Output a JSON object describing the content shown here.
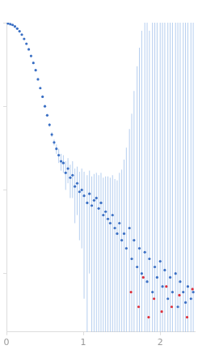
{
  "chart_data": {
    "type": "scatter",
    "log": "y",
    "grid": false,
    "tick_labels": "x",
    "xlim": [
      0,
      2.45
    ],
    "xticks": [
      0,
      1,
      2
    ],
    "ylim": [
      0.002,
      10
    ],
    "yticks": [
      0.01,
      0.1,
      1,
      10
    ],
    "series": [
      {
        "color": "#3a6fc4",
        "marker": "circle",
        "x": [
          0.02,
          0.05,
          0.08,
          0.11,
          0.14,
          0.17,
          0.2,
          0.23,
          0.26,
          0.29,
          0.32,
          0.35,
          0.38,
          0.41,
          0.44,
          0.47,
          0.5,
          0.53,
          0.56,
          0.59,
          0.62,
          0.65,
          0.68,
          0.71,
          0.74,
          0.77,
          0.8,
          0.83,
          0.86,
          0.89,
          0.92,
          0.95,
          0.98,
          1.01,
          1.05,
          1.08,
          1.11,
          1.14,
          1.17,
          1.2,
          1.23,
          1.26,
          1.29,
          1.32,
          1.35,
          1.38,
          1.41,
          1.44,
          1.47,
          1.5,
          1.53,
          1.56,
          1.6,
          1.63,
          1.66,
          1.7,
          1.73,
          1.76,
          1.8,
          1.83,
          1.86,
          1.9,
          1.93,
          1.96,
          2.0,
          2.03,
          2.06,
          2.1,
          2.13,
          2.16,
          2.2,
          2.23,
          2.26,
          2.3,
          2.33,
          2.36,
          2.4,
          2.43
        ],
        "values": [
          9.8,
          9.6,
          9.4,
          9.0,
          8.5,
          7.9,
          7.2,
          6.4,
          5.6,
          4.8,
          4.0,
          3.3,
          2.7,
          2.1,
          1.65,
          1.3,
          1.0,
          0.78,
          0.6,
          0.46,
          0.37,
          0.31,
          0.26,
          0.22,
          0.21,
          0.16,
          0.18,
          0.14,
          0.15,
          0.11,
          0.12,
          0.095,
          0.1,
          0.085,
          0.07,
          0.09,
          0.065,
          0.075,
          0.08,
          0.06,
          0.07,
          0.05,
          0.055,
          0.045,
          0.04,
          0.05,
          0.035,
          0.03,
          0.04,
          0.025,
          0.03,
          0.02,
          0.035,
          0.015,
          0.025,
          0.012,
          0.02,
          0.01,
          0.018,
          0.008,
          0.015,
          0.006,
          0.012,
          0.009,
          0.014,
          0.007,
          0.011,
          0.005,
          0.009,
          0.006,
          0.01,
          0.004,
          0.008,
          0.006,
          0.0045,
          0.007,
          0.005,
          0.006
        ],
        "errors": [
          0.1,
          0.1,
          0.1,
          0.1,
          0.1,
          0.1,
          0.1,
          0.1,
          0.1,
          0.1,
          0.08,
          0.07,
          0.06,
          0.05,
          0.04,
          0.04,
          0.03,
          0.03,
          0.03,
          0.03,
          0.03,
          0.04,
          0.05,
          0.05,
          0.05,
          0.06,
          0.06,
          0.06,
          0.07,
          0.07,
          0.07,
          0.07,
          0.08,
          0.08,
          0.08,
          0.08,
          0.08,
          0.08,
          0.08,
          0.09,
          0.09,
          0.09,
          0.09,
          0.1,
          0.1,
          0.1,
          0.1,
          0.1,
          0.12,
          0.15,
          0.2,
          0.3,
          0.5,
          0.8,
          1.5,
          3,
          5,
          8,
          10,
          12,
          8,
          15,
          20,
          10,
          25,
          12,
          20,
          30,
          15,
          25,
          30,
          20,
          30,
          25,
          30,
          20,
          30,
          25
        ]
      },
      {
        "color": "#e0303a",
        "marker": "circle",
        "x": [
          1.62,
          1.72,
          1.78,
          1.85,
          1.92,
          2.02,
          2.08,
          2.15,
          2.25,
          2.35,
          2.42
        ],
        "values": [
          0.006,
          0.004,
          0.009,
          0.003,
          0.005,
          0.0035,
          0.007,
          0.004,
          0.0055,
          0.003,
          0.0065
        ]
      }
    ]
  }
}
